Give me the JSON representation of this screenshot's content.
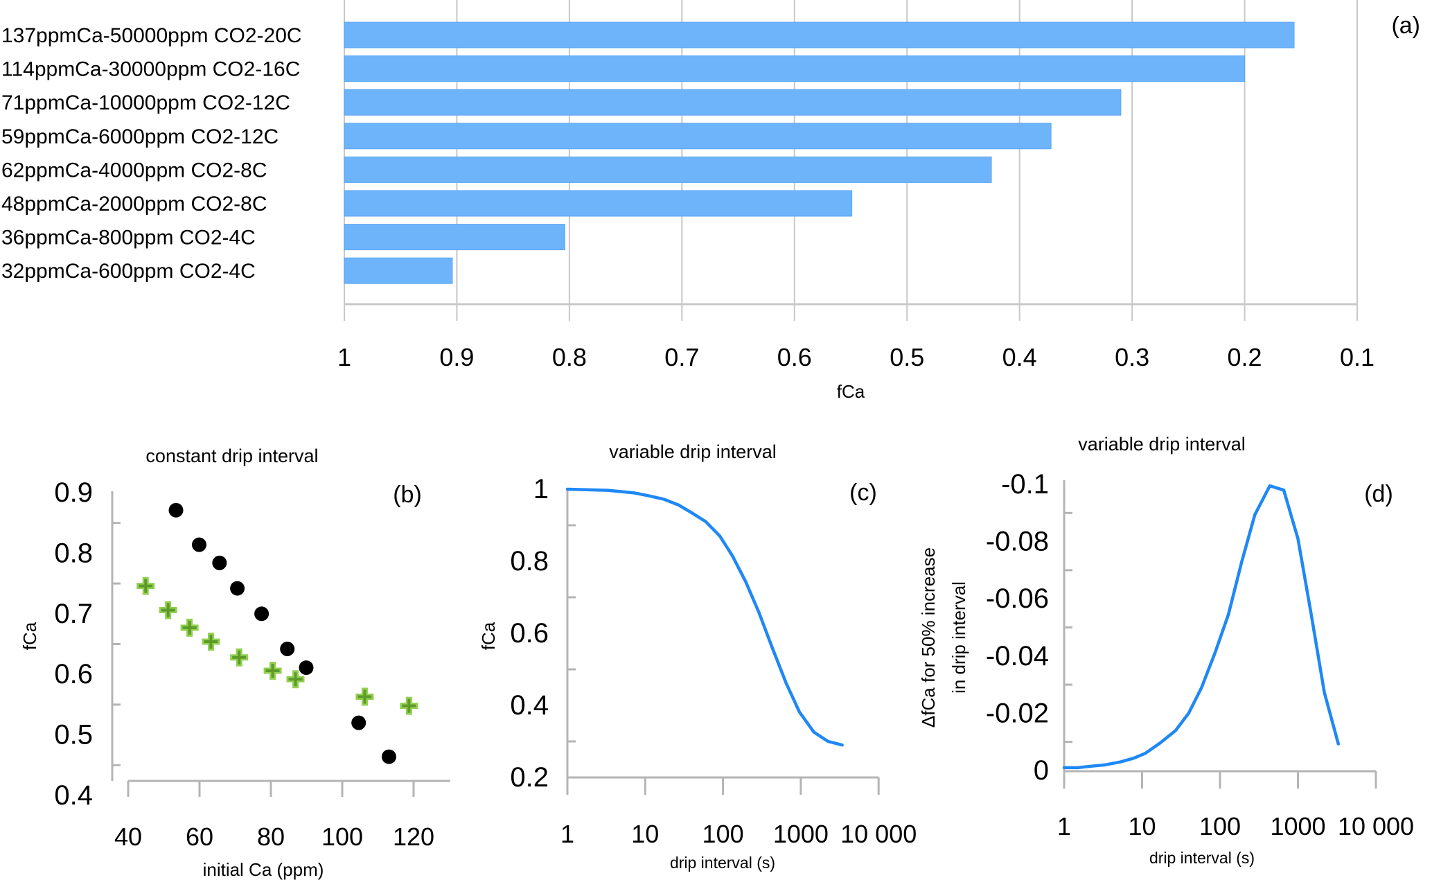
{
  "chart_data": [
    {
      "id": "a",
      "type": "bar",
      "orientation": "horizontal",
      "panel_label": "(a)",
      "title": "",
      "xlabel": "fCa",
      "ylabel": "",
      "x_reversed": true,
      "xlim": [
        1,
        0.1
      ],
      "x_ticks": [
        "1",
        "0.9",
        "0.8",
        "0.7",
        "0.6",
        "0.5",
        "0.4",
        "0.3",
        "0.2",
        "0.1"
      ],
      "x_tick_values": [
        1,
        0.9,
        0.8,
        0.7,
        0.6,
        0.5,
        0.4,
        0.3,
        0.2,
        0.1
      ],
      "grid": true,
      "bar_color": "#6eb4fa",
      "categories": [
        "137ppmCa-50000ppm CO2-20C",
        "114ppmCa-30000ppm CO2-16C",
        "71ppmCa-10000ppm CO2-12C",
        "59ppmCa-6000ppm CO2-12C",
        "62ppmCa-4000ppm CO2-8C",
        "48ppmCa-2000ppm CO2-8C",
        "36ppmCa-800ppm CO2-4C",
        "32ppmCa-600ppm CO2-4C"
      ],
      "values": [
        0.156,
        0.2,
        0.31,
        0.372,
        0.425,
        0.549,
        0.804,
        0.904
      ]
    },
    {
      "id": "b",
      "type": "scatter",
      "panel_label": "(b)",
      "title": "constant drip interval",
      "xlabel": "initial Ca (ppm)",
      "ylabel": "fCa",
      "xlim": [
        40,
        130
      ],
      "ylim": [
        0.4,
        0.9
      ],
      "x_ticks": [
        "40",
        "60",
        "80",
        "100",
        "120"
      ],
      "x_tick_values": [
        40,
        60,
        80,
        100,
        120
      ],
      "y_ticks": [
        "0.9",
        "0.8",
        "0.7",
        "0.6",
        "0.5",
        "0.4"
      ],
      "y_tick_values": [
        0.9,
        0.8,
        0.7,
        0.6,
        0.5,
        0.4
      ],
      "grid": false,
      "series": [
        {
          "name": "black circles",
          "marker": "circle",
          "color": "#000000",
          "points": [
            [
              53.4,
              0.871
            ],
            [
              59.9,
              0.814
            ],
            [
              65.6,
              0.784
            ],
            [
              70.6,
              0.742
            ],
            [
              77.4,
              0.7
            ],
            [
              84.6,
              0.642
            ],
            [
              89.9,
              0.611
            ],
            [
              104.6,
              0.52
            ],
            [
              113.1,
              0.464
            ]
          ]
        },
        {
          "name": "green crosses",
          "marker": "plus",
          "color": "#92d050",
          "points": [
            [
              44.9,
              0.746
            ],
            [
              51.2,
              0.706
            ],
            [
              57.2,
              0.677
            ],
            [
              63.2,
              0.654
            ],
            [
              71.1,
              0.628
            ],
            [
              80.5,
              0.606
            ],
            [
              86.9,
              0.592
            ],
            [
              106.3,
              0.563
            ],
            [
              118.7,
              0.548
            ]
          ]
        }
      ]
    },
    {
      "id": "c",
      "type": "line",
      "panel_label": "(c)",
      "title": "variable drip interval",
      "xlabel": "drip interval (s)",
      "ylabel": "fCa",
      "x_scale": "log",
      "xlim": [
        1,
        10000
      ],
      "ylim": [
        0.2,
        1
      ],
      "x_ticks": [
        "1",
        "10",
        "100",
        "1000",
        "10 000"
      ],
      "x_tick_values": [
        1,
        10,
        100,
        1000,
        10000
      ],
      "y_ticks": [
        "1",
        "0.8",
        "0.6",
        "0.4",
        "0.2"
      ],
      "y_tick_values": [
        1,
        0.8,
        0.6,
        0.4,
        0.2
      ],
      "grid": false,
      "series": [
        {
          "name": "fCa",
          "color": "#1e88f5",
          "x": [
            1,
            3.3,
            7.1,
            11,
            17.5,
            27,
            40,
            60,
            91,
            133,
            197,
            289,
            433,
            647,
            960,
            1470,
            2240,
            3400
          ],
          "y": [
            1.0,
            0.997,
            0.99,
            0.982,
            0.972,
            0.956,
            0.934,
            0.91,
            0.87,
            0.814,
            0.742,
            0.658,
            0.558,
            0.462,
            0.382,
            0.326,
            0.3,
            0.29
          ]
        }
      ]
    },
    {
      "id": "d",
      "type": "line",
      "panel_label": "(d)",
      "title": "variable drip interval",
      "xlabel": "drip interval (s)",
      "ylabel": "ΔfCa for 50% increase in drip interval",
      "ylabel_lines": [
        "ΔfCa for 50% increase",
        "in drip interval"
      ],
      "x_scale": "log",
      "xlim": [
        1,
        10000
      ],
      "ylim": [
        0,
        -0.1
      ],
      "y_reversed": true,
      "x_ticks": [
        "1",
        "10",
        "100",
        "1000",
        "10 000"
      ],
      "x_tick_values": [
        1,
        10,
        100,
        1000,
        10000
      ],
      "y_ticks": [
        "-0.1",
        "-0.08",
        "-0.06",
        "-0.04",
        "-0.02",
        "0"
      ],
      "y_tick_values": [
        -0.1,
        -0.08,
        -0.06,
        -0.04,
        -0.02,
        0
      ],
      "grid": false,
      "series": [
        {
          "name": "ΔfCa",
          "color": "#1e88f5",
          "x": [
            1,
            1.5,
            2.2,
            3.4,
            5.3,
            7.8,
            11,
            17,
            27,
            39.6,
            58,
            86,
            128,
            189,
            280,
            436,
            657,
            1000,
            1480,
            2180,
            3300
          ],
          "y": [
            -0.001,
            -0.001,
            -0.0015,
            -0.002,
            -0.003,
            -0.0043,
            -0.006,
            -0.0096,
            -0.014,
            -0.02,
            -0.029,
            -0.041,
            -0.0545,
            -0.0727,
            -0.0894,
            -0.0995,
            -0.098,
            -0.081,
            -0.0545,
            -0.0273,
            -0.0093
          ]
        }
      ]
    }
  ]
}
